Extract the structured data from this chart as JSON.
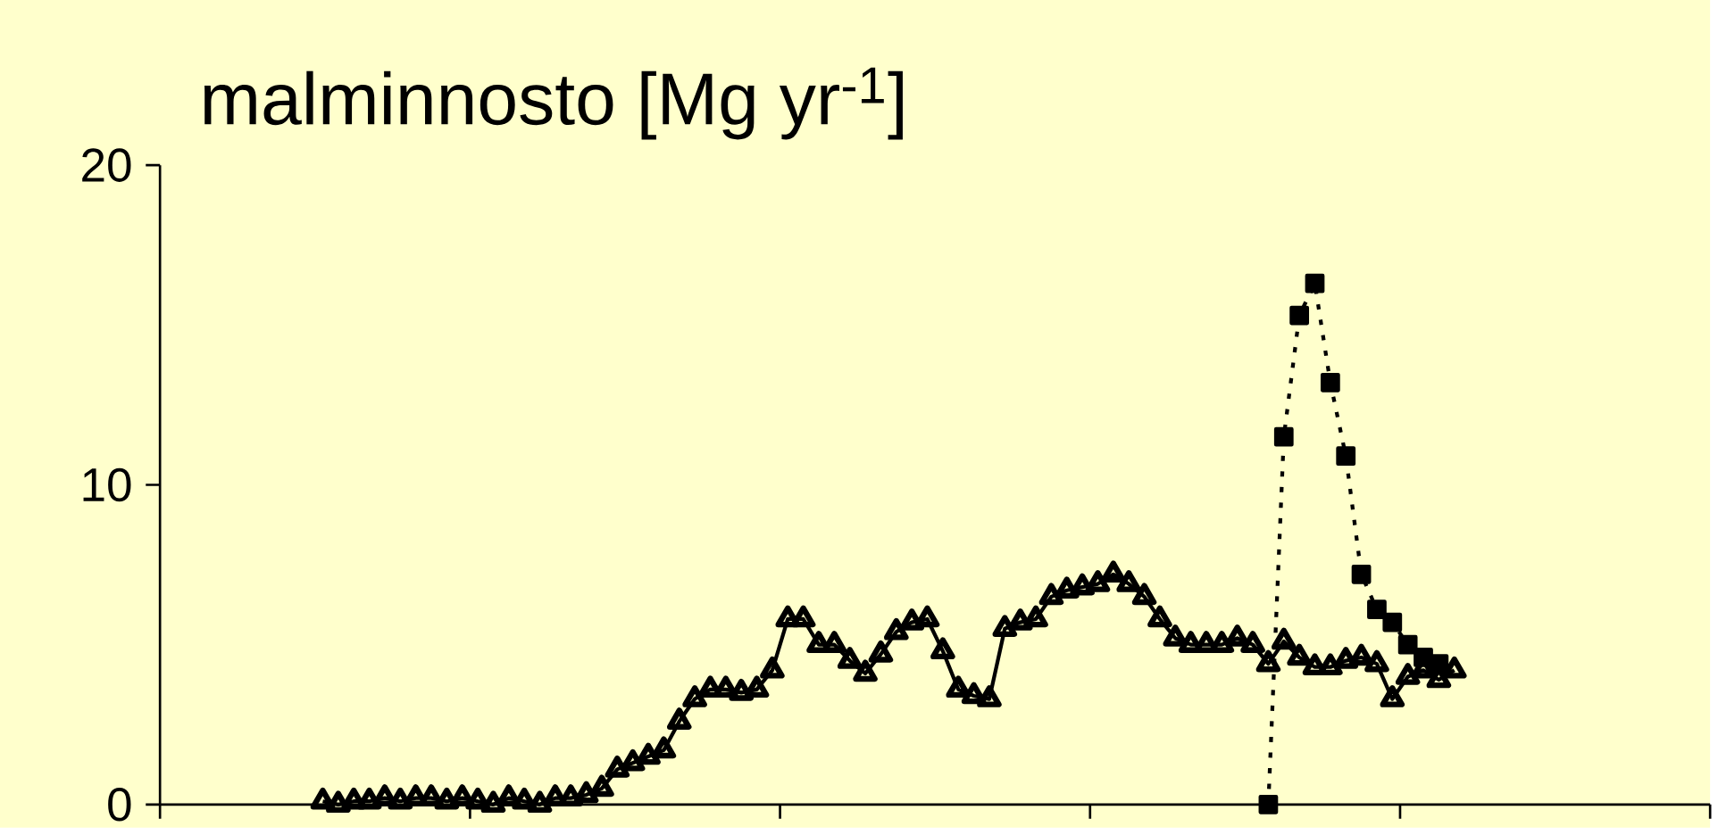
{
  "chart_data": {
    "type": "line",
    "title": "malminnosto [Mg yr$^{-1}$]",
    "categories": [
      null,
      null,
      null,
      null,
      null,
      null,
      null,
      null,
      null,
      null,
      null,
      null,
      null,
      null,
      null,
      null,
      null,
      null,
      null,
      null,
      null,
      null,
      null,
      null,
      null,
      null,
      null,
      null,
      null,
      null,
      null,
      null,
      null,
      null,
      null,
      null,
      null,
      null,
      null,
      null,
      null,
      null,
      null,
      null,
      null,
      null,
      null,
      null,
      null,
      null,
      null,
      null,
      null,
      null,
      null,
      null,
      null,
      null,
      null,
      null,
      null,
      null,
      null,
      null,
      null,
      null,
      null,
      null,
      null,
      null,
      null,
      null,
      null,
      null,
      null,
      null,
      null,
      null,
      null,
      null,
      null,
      null,
      null,
      null,
      null,
      null,
      null,
      null,
      null,
      null,
      null,
      null,
      null,
      null,
      null,
      null,
      null,
      null,
      null,
      null
    ],
    "series": [
      {
        "color": "#000000",
        "marker": "triangle",
        "line_style": "solid",
        "values": [
          null,
          null,
          null,
          null,
          null,
          null,
          null,
          null,
          null,
          null,
          0.1,
          0.0,
          0.1,
          0.1,
          0.2,
          0.1,
          0.2,
          0.2,
          0.1,
          0.2,
          0.1,
          0.0,
          0.2,
          0.1,
          0.0,
          0.2,
          0.2,
          0.3,
          0.5,
          1.1,
          1.3,
          1.5,
          1.7,
          2.6,
          3.3,
          3.6,
          3.6,
          3.5,
          3.6,
          4.2,
          5.8,
          5.8,
          5.0,
          5.0,
          4.5,
          4.1,
          4.7,
          5.4,
          5.7,
          5.8,
          4.8,
          3.6,
          3.4,
          3.3,
          5.5,
          5.7,
          5.8,
          6.5,
          6.7,
          6.8,
          6.9,
          7.2,
          6.9,
          6.5,
          5.8,
          5.2,
          5.0,
          5.0,
          5.0,
          5.2,
          5.0,
          4.4,
          5.1,
          4.6,
          4.3,
          4.3,
          4.5,
          4.6,
          4.4,
          3.3,
          4.0,
          4.2,
          3.9,
          4.2,
          null,
          null,
          null,
          null,
          null,
          null,
          null,
          null,
          null,
          null,
          null,
          null,
          null,
          null,
          null,
          null
        ]
      },
      {
        "color": "#000000",
        "marker": "square",
        "line_style": "dotted",
        "values": [
          null,
          null,
          null,
          null,
          null,
          null,
          null,
          null,
          null,
          null,
          null,
          null,
          null,
          null,
          null,
          null,
          null,
          null,
          null,
          null,
          null,
          null,
          null,
          null,
          null,
          null,
          null,
          null,
          null,
          null,
          null,
          null,
          null,
          null,
          null,
          null,
          null,
          null,
          null,
          null,
          null,
          null,
          null,
          null,
          null,
          null,
          null,
          null,
          null,
          null,
          null,
          null,
          null,
          null,
          null,
          null,
          null,
          null,
          null,
          null,
          null,
          null,
          null,
          null,
          null,
          null,
          null,
          null,
          null,
          null,
          null,
          0.0,
          11.5,
          15.3,
          16.3,
          13.2,
          10.9,
          7.2,
          6.1,
          5.7,
          5.0,
          4.6,
          4.4,
          null,
          null,
          null,
          null,
          null,
          null,
          null,
          null,
          null,
          null,
          null,
          null,
          null,
          null,
          null,
          null,
          null
        ]
      }
    ],
    "ylim": [
      0,
      20
    ],
    "yticks": [
      0,
      10,
      20
    ],
    "grid": false,
    "tick_labels": "y"
  }
}
